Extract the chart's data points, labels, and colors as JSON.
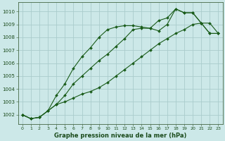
{
  "title": "Graphe pression niveau de la mer (hPa)",
  "background_color": "#cce8e8",
  "grid_color": "#aacccc",
  "line_color": "#1a5c1a",
  "xlim": [
    -0.5,
    23.5
  ],
  "ylim": [
    1001.3,
    1010.7
  ],
  "yticks": [
    1002,
    1003,
    1004,
    1005,
    1006,
    1007,
    1008,
    1009,
    1010
  ],
  "xtick_labels": [
    "0",
    "1",
    "2",
    "3",
    "4",
    "5",
    "6",
    "7",
    "8",
    "9",
    "10",
    "11",
    "12",
    "13",
    "14",
    "15",
    "16",
    "17",
    "18",
    "19",
    "20",
    "21",
    "22",
    "23"
  ],
  "series": [
    [
      1002.0,
      1001.7,
      1001.8,
      1002.3,
      1003.5,
      1004.4,
      1005.6,
      1006.5,
      1007.2,
      1008.0,
      1008.6,
      1008.8,
      1008.9,
      1008.9,
      1008.8,
      1008.7,
      1009.3,
      1009.5,
      1010.2,
      1009.9,
      1009.9,
      1009.1,
      1009.1,
      1008.3
    ],
    [
      1002.0,
      1001.7,
      1001.8,
      1002.3,
      1002.8,
      1003.5,
      1004.4,
      1005.0,
      1005.6,
      1006.2,
      1006.7,
      1007.3,
      1007.9,
      1008.6,
      1008.7,
      1008.7,
      1008.5,
      1009.0,
      1010.2,
      1009.9,
      1009.9,
      1009.1,
      1008.3,
      1008.3
    ],
    [
      1002.0,
      1001.7,
      1001.8,
      1002.3,
      1002.8,
      1003.0,
      1003.3,
      1003.6,
      1003.8,
      1004.1,
      1004.5,
      1005.0,
      1005.5,
      1006.0,
      1006.5,
      1007.0,
      1007.5,
      1007.9,
      1008.3,
      1008.6,
      1009.0,
      1009.1,
      1008.3,
      1008.3
    ]
  ]
}
